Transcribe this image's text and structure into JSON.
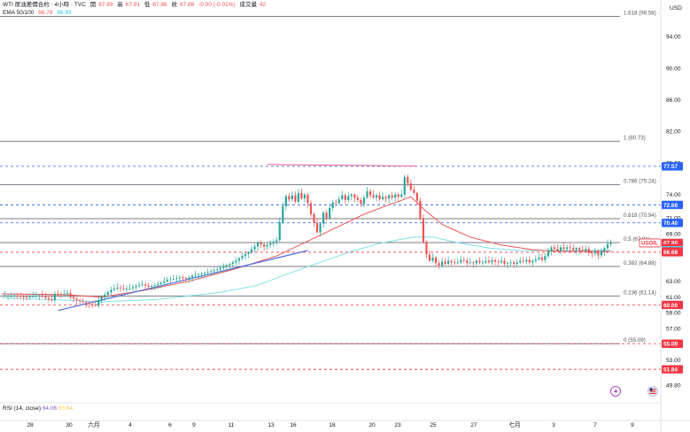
{
  "header": {
    "title": "WTI 原油差價合約 · 4小時 · TVC",
    "open_label": "開",
    "open_value": "67.89",
    "high_label": "高",
    "high_value": "67.91",
    "low_label": "低",
    "low_value": "67.86",
    "close_label": "收",
    "close_value": "67.86",
    "change": "-0.00 (-0.01%)",
    "volume_label": "成交量",
    "volume_value": "42",
    "ema_label": "EMA 50/100",
    "ema50_value": "66.78",
    "ema100_value": "66.93"
  },
  "currency": "USD",
  "rsi": {
    "label": "RSI (14, close)",
    "value1": "64.06",
    "value2": "55.64"
  },
  "colors": {
    "up": "#26a69a",
    "down": "#ef5350",
    "ema50": "#ef5350",
    "ema100": "#7fe0e8",
    "trendline": "#4a6fe3",
    "resistance": "#f06292",
    "fib": "#787b86",
    "blue_level": "#2962ff",
    "red_level": "#f23645"
  },
  "icons": [
    "lightning-icon",
    "flag-icon"
  ],
  "chart_data": {
    "type": "candlestick",
    "symbol": "USOIL",
    "ylim": [
      47.6,
      98.2
    ],
    "price_ticks": [
      "94.00",
      "90.00",
      "86.00",
      "82.00",
      "78.00",
      "74.00",
      "71.00",
      "69.00",
      "63.00",
      "61.00",
      "59.00",
      "57.00",
      "53.00",
      "49.80"
    ],
    "x_ticks": [
      "28",
      "30",
      "六月",
      "4",
      "6",
      "9",
      "11",
      "13",
      "16",
      "18",
      "20",
      "23",
      "25",
      "27",
      "七月",
      "3",
      "7",
      "9"
    ],
    "fib_levels": [
      {
        "label": "1.618 (96.58)",
        "value": 96.58
      },
      {
        "label": "1 (80.73)",
        "value": 80.73
      },
      {
        "label": "0.786 (75.24)",
        "value": 75.24
      },
      {
        "label": "0.618 (70.94)",
        "value": 70.94
      },
      {
        "label": "0.5 (67.91)",
        "value": 67.91
      },
      {
        "label": "0.382 (64.88)",
        "value": 64.88
      },
      {
        "label": "0.236 (61.14)",
        "value": 61.14
      },
      {
        "label": "0 (55.09)",
        "value": 55.09
      }
    ],
    "price_badges": [
      {
        "label": "77.57",
        "value": 77.57,
        "kind": "blue"
      },
      {
        "label": "72.68",
        "value": 72.68,
        "kind": "blue"
      },
      {
        "label": "70.40",
        "value": 70.4,
        "kind": "blue"
      },
      {
        "label": "USOIL",
        "value": 67.86,
        "kind": "symbol"
      },
      {
        "label": "67.86",
        "value": 67.86,
        "kind": "current"
      },
      {
        "label": "03:56:17",
        "value": 67.2,
        "kind": "timer"
      },
      {
        "label": "66.93",
        "value": 66.93,
        "kind": "ema100"
      },
      {
        "label": "66.78",
        "value": 66.78,
        "kind": "ema50"
      },
      {
        "label": "66.68",
        "value": 66.68,
        "kind": "red"
      },
      {
        "label": "60.00",
        "value": 60.0,
        "kind": "red"
      },
      {
        "label": "55.09",
        "value": 55.09,
        "kind": "red"
      },
      {
        "label": "51.84",
        "value": 51.84,
        "kind": "red"
      }
    ],
    "dashed_levels": [
      {
        "value": 77.57,
        "color": "blue"
      },
      {
        "value": 72.68,
        "color": "blue"
      },
      {
        "value": 70.4,
        "color": "blue"
      },
      {
        "value": 66.68,
        "color": "red"
      },
      {
        "value": 60.0,
        "color": "red"
      },
      {
        "value": 55.09,
        "color": "red"
      },
      {
        "value": 51.84,
        "color": "red"
      }
    ],
    "close_path": [
      [
        0,
        61.2
      ],
      [
        4,
        61.2
      ],
      [
        8,
        61.0
      ],
      [
        12,
        61.2
      ],
      [
        14,
        60.9
      ],
      [
        16,
        60.6
      ],
      [
        17,
        61.4
      ],
      [
        19,
        61.3
      ],
      [
        21,
        61.5
      ],
      [
        22,
        61.0
      ],
      [
        24,
        60.6
      ],
      [
        26,
        60.4
      ],
      [
        28,
        60.1
      ],
      [
        30,
        59.9
      ],
      [
        31,
        60.6
      ],
      [
        33,
        61.3
      ],
      [
        35,
        61.9
      ],
      [
        37,
        62.2
      ],
      [
        39,
        62.0
      ],
      [
        41,
        62.1
      ],
      [
        43,
        62.4
      ],
      [
        45,
        62.6
      ],
      [
        47,
        62.3
      ],
      [
        49,
        62.5
      ],
      [
        51,
        62.8
      ],
      [
        53,
        63.2
      ],
      [
        55,
        63.3
      ],
      [
        57,
        63.5
      ],
      [
        59,
        63.3
      ],
      [
        61,
        63.7
      ],
      [
        63,
        63.9
      ],
      [
        65,
        64.1
      ],
      [
        67,
        64.3
      ],
      [
        69,
        64.5
      ],
      [
        71,
        64.9
      ],
      [
        73,
        65.2
      ],
      [
        75,
        65.6
      ],
      [
        77,
        66.2
      ],
      [
        79,
        66.7
      ],
      [
        81,
        67.4
      ],
      [
        82,
        67.9
      ],
      [
        84,
        67.4
      ],
      [
        86,
        67.8
      ],
      [
        88,
        68.2
      ],
      [
        89,
        70.5
      ],
      [
        90,
        72.5
      ],
      [
        91,
        73.8
      ],
      [
        92,
        73.4
      ],
      [
        93,
        73.9
      ],
      [
        94,
        73.1
      ],
      [
        95,
        74.2
      ],
      [
        96,
        73.5
      ],
      [
        97,
        74.0
      ],
      [
        98,
        72.9
      ],
      [
        99,
        71.5
      ],
      [
        100,
        70.4
      ],
      [
        101,
        69.2
      ],
      [
        102,
        70.3
      ],
      [
        103,
        71.7
      ],
      [
        104,
        71.0
      ],
      [
        105,
        72.3
      ],
      [
        106,
        73.0
      ],
      [
        107,
        72.9
      ],
      [
        108,
        73.4
      ],
      [
        109,
        73.9
      ],
      [
        110,
        73.3
      ],
      [
        111,
        73.8
      ],
      [
        112,
        74.0
      ],
      [
        113,
        73.6
      ],
      [
        114,
        73.3
      ],
      [
        115,
        72.8
      ],
      [
        116,
        73.6
      ],
      [
        117,
        74.4
      ],
      [
        118,
        73.9
      ],
      [
        119,
        73.6
      ],
      [
        120,
        73.9
      ],
      [
        121,
        73.4
      ],
      [
        122,
        73.7
      ],
      [
        123,
        73.5
      ],
      [
        124,
        73.9
      ],
      [
        125,
        73.6
      ],
      [
        126,
        74.0
      ],
      [
        127,
        73.7
      ],
      [
        128,
        74.0
      ],
      [
        129,
        76.2
      ],
      [
        130,
        75.4
      ],
      [
        131,
        74.6
      ],
      [
        132,
        74.2
      ],
      [
        133,
        73.2
      ],
      [
        134,
        71.0
      ],
      [
        135,
        68.0
      ],
      [
        136,
        66.4
      ],
      [
        137,
        65.6
      ],
      [
        138,
        66.0
      ],
      [
        139,
        65.3
      ],
      [
        140,
        65.0
      ],
      [
        141,
        65.5
      ],
      [
        142,
        65.2
      ],
      [
        143,
        65.6
      ],
      [
        144,
        65.4
      ],
      [
        145,
        65.3
      ],
      [
        146,
        65.4
      ],
      [
        147,
        65.7
      ],
      [
        148,
        65.6
      ],
      [
        149,
        65.3
      ],
      [
        150,
        65.4
      ],
      [
        151,
        65.3
      ],
      [
        152,
        65.6
      ],
      [
        153,
        65.4
      ],
      [
        154,
        65.4
      ],
      [
        155,
        65.6
      ],
      [
        156,
        65.4
      ],
      [
        157,
        65.7
      ],
      [
        158,
        65.5
      ],
      [
        159,
        65.4
      ],
      [
        160,
        65.6
      ],
      [
        161,
        65.2
      ],
      [
        162,
        65.3
      ],
      [
        163,
        65.4
      ],
      [
        164,
        65.2
      ],
      [
        165,
        65.4
      ],
      [
        166,
        65.6
      ],
      [
        167,
        65.5
      ],
      [
        168,
        65.7
      ],
      [
        169,
        65.4
      ],
      [
        170,
        65.6
      ],
      [
        171,
        65.8
      ],
      [
        172,
        66.0
      ],
      [
        173,
        65.7
      ],
      [
        174,
        66.2
      ],
      [
        175,
        66.8
      ],
      [
        176,
        67.3
      ],
      [
        177,
        67.1
      ],
      [
        178,
        66.9
      ],
      [
        179,
        67.3
      ],
      [
        180,
        67.1
      ],
      [
        181,
        67.3
      ],
      [
        182,
        67.2
      ],
      [
        183,
        67.0
      ],
      [
        184,
        67.2
      ],
      [
        185,
        67.0
      ],
      [
        186,
        66.9
      ],
      [
        187,
        67.1
      ],
      [
        188,
        66.6
      ],
      [
        189,
        66.5
      ],
      [
        190,
        66.8
      ],
      [
        191,
        66.3
      ],
      [
        192,
        66.8
      ],
      [
        193,
        67.2
      ],
      [
        194,
        67.7
      ],
      [
        195,
        67.86
      ]
    ],
    "ema50": [
      [
        0,
        61.4
      ],
      [
        20,
        61.3
      ],
      [
        32,
        61.0
      ],
      [
        45,
        61.8
      ],
      [
        60,
        63.0
      ],
      [
        75,
        64.6
      ],
      [
        88,
        66.2
      ],
      [
        96,
        67.7
      ],
      [
        106,
        69.6
      ],
      [
        116,
        71.5
      ],
      [
        124,
        72.7
      ],
      [
        131,
        73.7
      ],
      [
        135,
        72.2
      ],
      [
        141,
        70.2
      ],
      [
        150,
        68.6
      ],
      [
        160,
        67.6
      ],
      [
        170,
        67.0
      ],
      [
        178,
        66.8
      ],
      [
        190,
        66.78
      ],
      [
        195,
        66.78
      ]
    ],
    "ema100": [
      [
        0,
        60.9
      ],
      [
        20,
        60.6
      ],
      [
        32,
        60.4
      ],
      [
        50,
        60.7
      ],
      [
        70,
        61.6
      ],
      [
        82,
        62.5
      ],
      [
        92,
        64.0
      ],
      [
        102,
        65.4
      ],
      [
        112,
        66.8
      ],
      [
        122,
        67.9
      ],
      [
        132,
        68.6
      ],
      [
        138,
        68.6
      ],
      [
        146,
        67.9
      ],
      [
        156,
        67.2
      ],
      [
        166,
        66.9
      ],
      [
        178,
        66.9
      ],
      [
        190,
        66.93
      ],
      [
        195,
        66.93
      ]
    ],
    "trendline": [
      [
        18,
        59.3
      ],
      [
        98,
        66.9
      ]
    ],
    "resistance": [
      [
        85,
        77.8
      ],
      [
        133,
        77.6
      ]
    ]
  }
}
